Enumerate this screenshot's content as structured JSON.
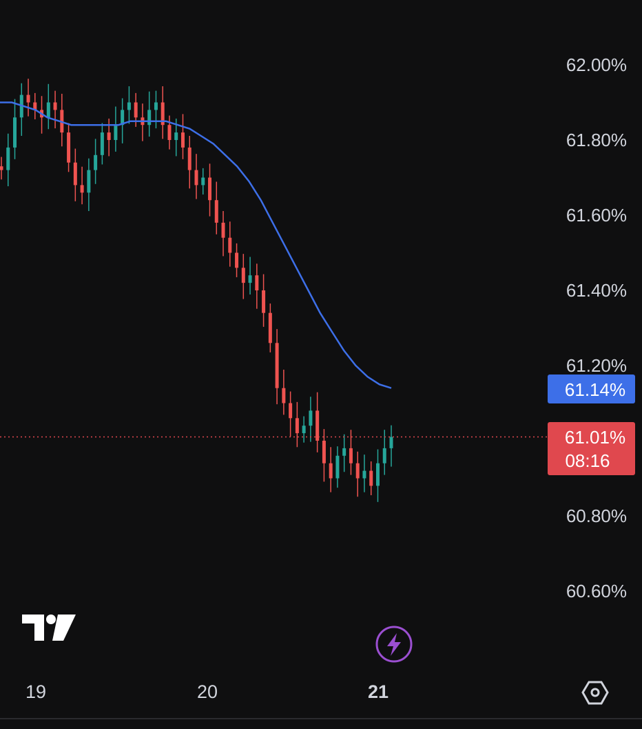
{
  "chart_data": {
    "type": "candlestick",
    "y_axis": {
      "ticks": [
        "62.00%",
        "61.80%",
        "61.60%",
        "61.40%",
        "61.20%",
        "60.80%",
        "60.60%"
      ],
      "tick_values": [
        62.0,
        61.8,
        61.6,
        61.4,
        61.2,
        60.8,
        60.6
      ],
      "range": [
        60.45,
        62.1
      ],
      "side": "right"
    },
    "x_axis": {
      "ticks": [
        {
          "label": "19",
          "bold": false
        },
        {
          "label": "20",
          "bold": false
        },
        {
          "label": "21",
          "bold": true
        }
      ]
    },
    "series_ohlc": {
      "up_color": "#26a69a",
      "down_color": "#ef5350",
      "closes": [
        61.72,
        61.78,
        61.86,
        61.92,
        61.9,
        61.88,
        61.86,
        61.9,
        61.88,
        61.82,
        61.74,
        61.68,
        61.66,
        61.72,
        61.76,
        61.82,
        61.8,
        61.84,
        61.88,
        61.9,
        61.86,
        61.84,
        61.88,
        61.9,
        61.84,
        61.8,
        61.82,
        61.78,
        61.72,
        61.68,
        61.7,
        61.64,
        61.58,
        61.54,
        61.5,
        61.46,
        61.42,
        61.44,
        61.4,
        61.34,
        61.26,
        61.14,
        61.1,
        61.06,
        61.02,
        61.04,
        61.08,
        61.0,
        60.94,
        60.9,
        60.96,
        60.98,
        60.94,
        60.9,
        60.92,
        60.88,
        60.94,
        60.98,
        61.01
      ]
    },
    "moving_average": {
      "color": "#3d6fe8",
      "last_value": 61.14,
      "values": [
        61.9,
        61.9,
        61.89,
        61.88,
        61.86,
        61.85,
        61.84,
        61.84,
        61.84,
        61.84,
        61.84,
        61.85,
        61.85,
        61.85,
        61.85,
        61.84,
        61.83,
        61.81,
        61.79,
        61.76,
        61.73,
        61.69,
        61.64,
        61.58,
        61.52,
        61.46,
        61.4,
        61.34,
        61.29,
        61.24,
        61.2,
        61.17,
        61.15,
        61.14
      ]
    },
    "last_price": {
      "value": 61.01,
      "label": "61.01%",
      "countdown": "08:16",
      "color": "#e0484e"
    },
    "ma_label": {
      "label": "61.14%",
      "color": "#3d6fe8"
    }
  },
  "background": "#0f0f10",
  "icons": {
    "logo": "tradingview-logo",
    "flash": "lightning-icon",
    "settings": "settings-hexagon-icon"
  }
}
